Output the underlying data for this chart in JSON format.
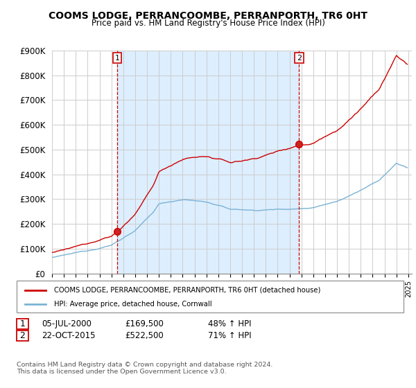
{
  "title": "COOMS LODGE, PERRANCOOMBE, PERRANPORTH, TR6 0HT",
  "subtitle": "Price paid vs. HM Land Registry's House Price Index (HPI)",
  "ylim": [
    0,
    900000
  ],
  "yticks": [
    0,
    100000,
    200000,
    300000,
    400000,
    500000,
    600000,
    700000,
    800000,
    900000
  ],
  "ytick_labels": [
    "£0",
    "£100K",
    "£200K",
    "£300K",
    "£400K",
    "£500K",
    "£600K",
    "£700K",
    "£800K",
    "£900K"
  ],
  "hpi_color": "#7ab3d4",
  "price_color": "#cc0000",
  "vline_color": "#cc0000",
  "fill_color": "#ddeeff",
  "grid_color": "#cccccc",
  "legend_label_price": "COOMS LODGE, PERRANCOOMBE, PERRANPORTH, TR6 0HT (detached house)",
  "legend_label_hpi": "HPI: Average price, detached house, Cornwall",
  "footer1": "Contains HM Land Registry data © Crown copyright and database right 2024.",
  "footer2": "This data is licensed under the Open Government Licence v3.0.",
  "purchase_table": [
    {
      "num": "1",
      "date": "05-JUL-2000",
      "price": "£169,500",
      "pct": "48% ↑ HPI"
    },
    {
      "num": "2",
      "date": "22-OCT-2015",
      "price": "£522,500",
      "pct": "71% ↑ HPI"
    }
  ],
  "p1_year": 2000.5,
  "p1_price": 169500,
  "p2_year": 2015.8,
  "p2_price": 522500
}
